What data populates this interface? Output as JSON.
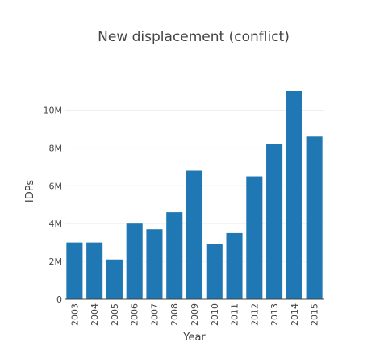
{
  "chart_data": {
    "type": "bar",
    "title": "New displacement (conflict)",
    "xlabel": "Year",
    "ylabel": "IDPs",
    "categories": [
      "2003",
      "2004",
      "2005",
      "2006",
      "2007",
      "2008",
      "2009",
      "2010",
      "2011",
      "2012",
      "2013",
      "2014",
      "2015"
    ],
    "values": [
      3000000,
      3000000,
      2100000,
      4000000,
      3700000,
      4600000,
      6800000,
      2900000,
      3500000,
      6500000,
      8200000,
      11000000,
      8600000
    ],
    "ylim": [
      0,
      11000000
    ],
    "yticks": [
      0,
      2000000,
      4000000,
      6000000,
      8000000,
      10000000
    ],
    "ytick_labels": [
      "0",
      "2M",
      "4M",
      "6M",
      "8M",
      "10M"
    ],
    "bar_color": "#1f77b4",
    "grid": true
  }
}
